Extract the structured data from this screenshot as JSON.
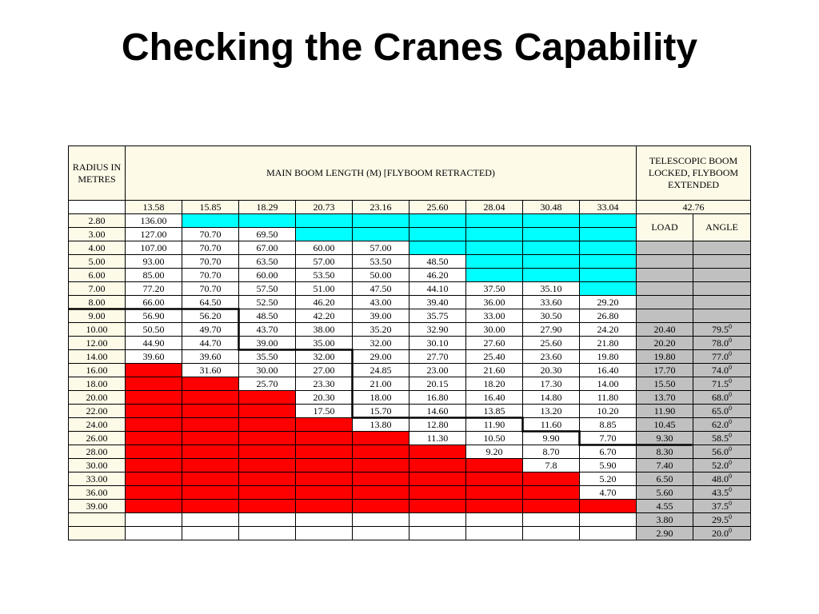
{
  "title": "Checking the Cranes Capability",
  "table": {
    "radius_header": "RADIUS IN METRES",
    "boom_header": "MAIN BOOM LENGTH (M)  [FLYBOOM RETRACTED)",
    "telescopic_header": "TELESCOPIC BOOM LOCKED, FLYBOOM EXTENDED",
    "boom_lengths": [
      "13.58",
      "15.85",
      "18.29",
      "20.73",
      "23.16",
      "25.60",
      "28.04",
      "30.48",
      "33.04"
    ],
    "fly_length": "42.76",
    "load_label": "LOAD",
    "angle_label": "ANGLE",
    "rows": [
      {
        "r": "2.80",
        "v": [
          "136.00",
          "",
          "",
          "",
          "",
          "",
          "",
          "",
          ""
        ],
        "load": "",
        "angle": ""
      },
      {
        "r": "3.00",
        "v": [
          "127.00",
          "70.70",
          "69.50",
          "",
          "",
          "",
          "",
          "",
          ""
        ],
        "load": "",
        "angle": ""
      },
      {
        "r": "4.00",
        "v": [
          "107.00",
          "70.70",
          "67.00",
          "60.00",
          "57.00",
          "",
          "",
          "",
          ""
        ],
        "load": "",
        "angle": ""
      },
      {
        "r": "5.00",
        "v": [
          "93.00",
          "70.70",
          "63.50",
          "57.00",
          "53.50",
          "48.50",
          "",
          "",
          ""
        ],
        "load": "",
        "angle": ""
      },
      {
        "r": "6.00",
        "v": [
          "85.00",
          "70.70",
          "60.00",
          "53.50",
          "50.00",
          "46.20",
          "",
          "",
          ""
        ],
        "load": "",
        "angle": ""
      },
      {
        "r": "7.00",
        "v": [
          "77.20",
          "70.70",
          "57.50",
          "51.00",
          "47.50",
          "44.10",
          "37.50",
          "35.10",
          ""
        ],
        "load": "",
        "angle": ""
      },
      {
        "r": "8.00",
        "v": [
          "66.00",
          "64.50",
          "52.50",
          "46.20",
          "43.00",
          "39.40",
          "36.00",
          "33.60",
          "29.20"
        ],
        "load": "",
        "angle": ""
      },
      {
        "r": "9.00",
        "v": [
          "56.90",
          "56.20",
          "48.50",
          "42.20",
          "39.00",
          "35.75",
          "33.00",
          "30.50",
          "26.80"
        ],
        "load": "",
        "angle": ""
      },
      {
        "r": "10.00",
        "v": [
          "50.50",
          "49.70",
          "43.70",
          "38.00",
          "35.20",
          "32.90",
          "30.00",
          "27.90",
          "24.20"
        ],
        "load": "20.40",
        "angle": "79.5"
      },
      {
        "r": "12.00",
        "v": [
          "44.90",
          "44.70",
          "39.00",
          "35.00",
          "32.00",
          "30.10",
          "27.60",
          "25.60",
          "21.80"
        ],
        "load": "20.20",
        "angle": "78.0"
      },
      {
        "r": "14.00",
        "v": [
          "39.60",
          "39.60",
          "35.50",
          "32.00",
          "29.00",
          "27.70",
          "25.40",
          "23.60",
          "19.80"
        ],
        "load": "19.80",
        "angle": "77.0"
      },
      {
        "r": "16.00",
        "v": [
          "",
          "31.60",
          "30.00",
          "27.00",
          "24.85",
          "23.00",
          "21.60",
          "20.30",
          "16.40"
        ],
        "load": "17.70",
        "angle": "74.0"
      },
      {
        "r": "18.00",
        "v": [
          "",
          "",
          "25.70",
          "23.30",
          "21.00",
          "20.15",
          "18.20",
          "17.30",
          "14.00"
        ],
        "load": "15.50",
        "angle": "71.5"
      },
      {
        "r": "20.00",
        "v": [
          "",
          "",
          "",
          "20.30",
          "18.00",
          "16.80",
          "16.40",
          "14.80",
          "11.80"
        ],
        "load": "13.70",
        "angle": "68.0"
      },
      {
        "r": "22.00",
        "v": [
          "",
          "",
          "",
          "17.50",
          "15.70",
          "14.60",
          "13.85",
          "13.20",
          "10.20"
        ],
        "load": "11.90",
        "angle": "65.0"
      },
      {
        "r": "24.00",
        "v": [
          "",
          "",
          "",
          "",
          "13.80",
          "12.80",
          "11.90",
          "11.60",
          "8.85"
        ],
        "load": "10.45",
        "angle": "62.0"
      },
      {
        "r": "26.00",
        "v": [
          "",
          "",
          "",
          "",
          "",
          "11.30",
          "10.50",
          "9.90",
          "7.70"
        ],
        "load": "9.30",
        "angle": "58.5"
      },
      {
        "r": "28.00",
        "v": [
          "",
          "",
          "",
          "",
          "",
          "",
          "9.20",
          "8.70",
          "6.70"
        ],
        "load": "8.30",
        "angle": "56.0"
      },
      {
        "r": "30.00",
        "v": [
          "",
          "",
          "",
          "",
          "",
          "",
          "",
          "7.8",
          "5.90"
        ],
        "load": "7.40",
        "angle": "52.0"
      },
      {
        "r": "33.00",
        "v": [
          "",
          "",
          "",
          "",
          "",
          "",
          "",
          "",
          "5.20"
        ],
        "load": "6.50",
        "angle": "48.0"
      },
      {
        "r": "36.00",
        "v": [
          "",
          "",
          "",
          "",
          "",
          "",
          "",
          "",
          "4.70"
        ],
        "load": "5.60",
        "angle": "43.5"
      },
      {
        "r": "39.00",
        "v": [
          "",
          "",
          "",
          "",
          "",
          "",
          "",
          "",
          ""
        ],
        "load": "4.55",
        "angle": "37.5"
      },
      {
        "r": "",
        "v": [
          "",
          "",
          "",
          "",
          "",
          "",
          "",
          "",
          ""
        ],
        "load": "3.80",
        "angle": "29.5"
      },
      {
        "r": "",
        "v": [
          "",
          "",
          "",
          "",
          "",
          "",
          "",
          "",
          ""
        ],
        "load": "2.90",
        "angle": "20.0"
      }
    ],
    "degree_mark": "0",
    "colors": {
      "cream": "#fefae8",
      "cyan": "#00ffff",
      "red": "#ff0000",
      "gray": "#c0c0c0"
    }
  }
}
